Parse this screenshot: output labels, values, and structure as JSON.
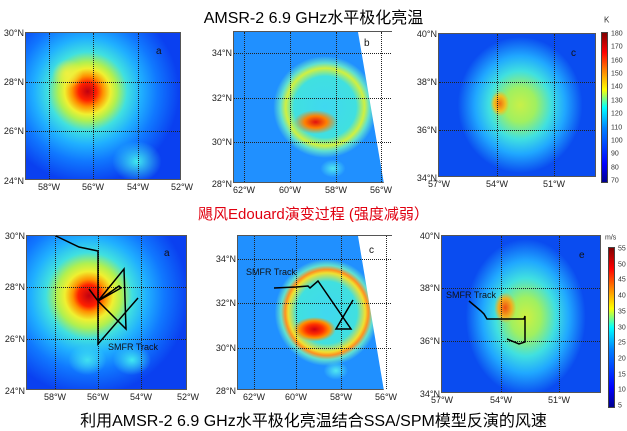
{
  "title": "AMSR-2 6.9 GHz水平极化亮温",
  "subtitle": "飓风Edouard演变过程 (强度减弱）",
  "bottom_title": "利用AMSR-2 6.9 GHz水平极化亮温结合SSA/SPM模型反演的风速",
  "panels": [
    {
      "letter": "a",
      "yticks": [
        "30°N",
        "28°N",
        "26°N",
        "24°N"
      ],
      "xticks": [
        "58°W",
        "56°W",
        "54°W",
        "52°W"
      ]
    },
    {
      "letter": "b",
      "yticks": [
        "34°N",
        "32°N",
        "30°N",
        "28°N"
      ],
      "xticks": [
        "62°W",
        "60°W",
        "58°W",
        "56°W"
      ]
    },
    {
      "letter": "c",
      "yticks": [
        "40°N",
        "38°N",
        "36°N",
        "34°N"
      ],
      "xticks": [
        "57°W",
        "54°W",
        "51°W"
      ]
    },
    {
      "letter": "a",
      "yticks": [
        "30°N",
        "28°N",
        "26°N",
        "24°N"
      ],
      "xticks": [
        "58°W",
        "56°W",
        "54°W",
        "52°W"
      ],
      "track_label": "SMFR Track"
    },
    {
      "letter": "c",
      "yticks": [
        "34°N",
        "32°N",
        "30°N",
        "28°N"
      ],
      "xticks": [
        "62°W",
        "60°W",
        "58°W",
        "56°W"
      ],
      "track_label": "SMFR Track"
    },
    {
      "letter": "e",
      "yticks": [
        "40°N",
        "38°N",
        "36°N",
        "34°N"
      ],
      "xticks": [
        "57°W",
        "54°W",
        "51°W"
      ],
      "track_label": "SMFR Track"
    }
  ],
  "colorbar_tb": {
    "unit": "K",
    "ticks": [
      "180",
      "170",
      "160",
      "150",
      "140",
      "130",
      "120",
      "110",
      "100",
      "90",
      "80",
      "70"
    ]
  },
  "colorbar_wind": {
    "unit": "m/s",
    "ticks": [
      "55",
      "50",
      "45",
      "40",
      "35",
      "30",
      "25",
      "20",
      "15",
      "10",
      "5"
    ]
  }
}
